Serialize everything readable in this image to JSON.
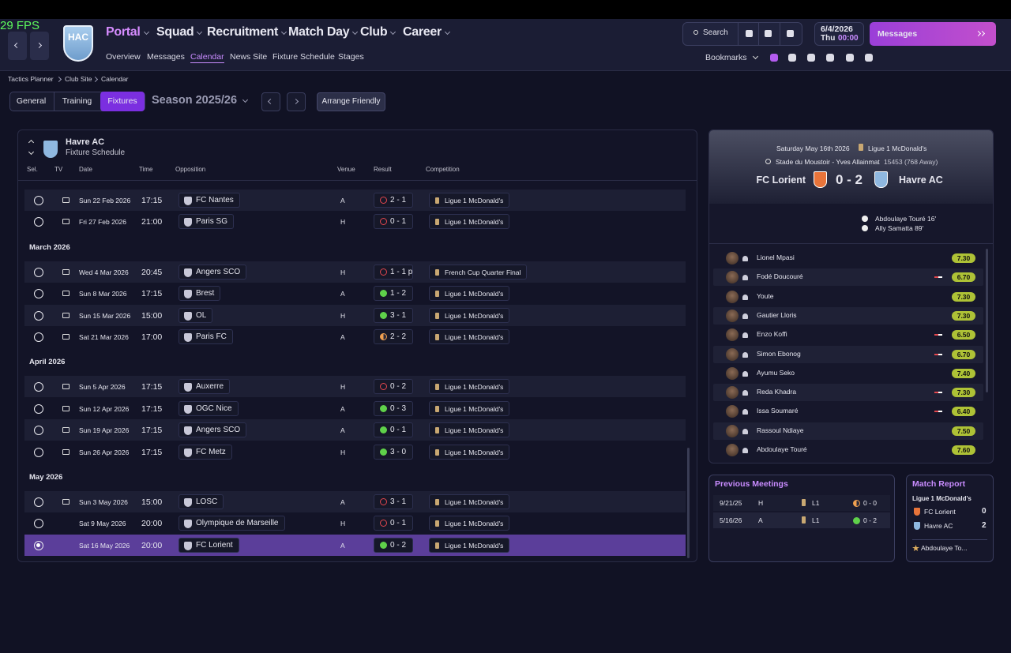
{
  "fps": "29 FPS",
  "nav": {
    "badge": "HAC",
    "menus": [
      "Portal",
      "Squad",
      "Recruitment",
      "Match Day",
      "Club",
      "Career"
    ],
    "submenu": [
      "Overview",
      "Messages",
      "Calendar",
      "News Site",
      "Fixture Schedule",
      "Stages"
    ],
    "search": "Search",
    "date": "6/4/2026",
    "day": "Thu",
    "time": "00:00",
    "messages": "Messages",
    "bookmarks": "Bookmarks"
  },
  "breadcrumb": [
    "Tactics Planner",
    "Club Site",
    "Calendar"
  ],
  "tabs": [
    "General",
    "Training",
    "Fixtures"
  ],
  "season": "Season 2025/26",
  "arrange": "Arrange Friendly",
  "schedule": {
    "team": "Havre AC",
    "subtitle": "Fixture Schedule",
    "columns": [
      "Sel.",
      "TV",
      "Date",
      "Time",
      "Opposition",
      "Venue",
      "Result",
      "Competition"
    ],
    "groups": [
      {
        "rows": [
          {
            "date": "Sun 22 Feb 2026",
            "time": "17:15",
            "opponent": "FC Nantes",
            "venue": "A",
            "result": "2 - 1",
            "outcome": "loss",
            "competition": "Ligue 1 McDonald's",
            "tv": true
          },
          {
            "date": "Fri 27 Feb 2026",
            "time": "21:00",
            "opponent": "Paris SG",
            "venue": "H",
            "result": "0 - 1",
            "outcome": "loss",
            "competition": "Ligue 1 McDonald's",
            "tv": true
          }
        ]
      },
      {
        "month": "March 2026",
        "rows": [
          {
            "date": "Wed 4 Mar 2026",
            "time": "20:45",
            "opponent": "Angers SCO",
            "venue": "H",
            "result": "1 - 1 p",
            "outcome": "loss",
            "competition": "French Cup Quarter Final",
            "tv": true
          },
          {
            "date": "Sun 8 Mar 2026",
            "time": "17:15",
            "opponent": "Brest",
            "venue": "A",
            "result": "1 - 2",
            "outcome": "win",
            "competition": "Ligue 1 McDonald's",
            "tv": true
          },
          {
            "date": "Sun 15 Mar 2026",
            "time": "15:00",
            "opponent": "OL",
            "venue": "H",
            "result": "3 - 1",
            "outcome": "win",
            "competition": "Ligue 1 McDonald's",
            "tv": true
          },
          {
            "date": "Sat 21 Mar 2026",
            "time": "17:00",
            "opponent": "Paris FC",
            "venue": "A",
            "result": "2 - 2",
            "outcome": "draw",
            "competition": "Ligue 1 McDonald's",
            "tv": true
          }
        ]
      },
      {
        "month": "April 2026",
        "rows": [
          {
            "date": "Sun 5 Apr 2026",
            "time": "17:15",
            "opponent": "Auxerre",
            "venue": "H",
            "result": "0 - 2",
            "outcome": "loss",
            "competition": "Ligue 1 McDonald's",
            "tv": true
          },
          {
            "date": "Sun 12 Apr 2026",
            "time": "17:15",
            "opponent": "OGC Nice",
            "venue": "A",
            "result": "0 - 3",
            "outcome": "win",
            "competition": "Ligue 1 McDonald's",
            "tv": true
          },
          {
            "date": "Sun 19 Apr 2026",
            "time": "17:15",
            "opponent": "Angers SCO",
            "venue": "A",
            "result": "0 - 1",
            "outcome": "win",
            "competition": "Ligue 1 McDonald's",
            "tv": true
          },
          {
            "date": "Sun 26 Apr 2026",
            "time": "17:15",
            "opponent": "FC Metz",
            "venue": "H",
            "result": "3 - 0",
            "outcome": "win",
            "competition": "Ligue 1 McDonald's",
            "tv": true
          }
        ]
      },
      {
        "month": "May 2026",
        "rows": [
          {
            "date": "Sun 3 May 2026",
            "time": "15:00",
            "opponent": "LOSC",
            "venue": "A",
            "result": "3 - 1",
            "outcome": "loss",
            "competition": "Ligue 1 McDonald's",
            "tv": true
          },
          {
            "date": "Sat 9 May 2026",
            "time": "20:00",
            "opponent": "Olympique de Marseille",
            "venue": "H",
            "result": "0 - 1",
            "outcome": "loss",
            "competition": "Ligue 1 McDonald's",
            "tv": false
          },
          {
            "date": "Sat 16 May 2026",
            "time": "20:00",
            "opponent": "FC Lorient",
            "venue": "A",
            "result": "0 - 2",
            "outcome": "win",
            "competition": "Ligue 1 McDonald's",
            "tv": false,
            "selected": true
          }
        ]
      }
    ]
  },
  "match": {
    "date": "Saturday May 16th 2026",
    "competition": "Ligue 1 McDonald's",
    "stadium": "Stade du Moustoir - Yves Allainmat",
    "attendance": "15453",
    "away_fans": "(768 Away)",
    "home": "FC Lorient",
    "score": "0 - 2",
    "away": "Havre AC",
    "scorers": [
      "Abdoulaye Touré 16'",
      "Ally Samatta 89'"
    ],
    "players": [
      {
        "name": "Lionel Mpasi",
        "rating": "7.30",
        "sub": false
      },
      {
        "name": "Fodé Doucouré",
        "rating": "6.70",
        "sub": true
      },
      {
        "name": "Youte",
        "rating": "7.30",
        "sub": false
      },
      {
        "name": "Gautier Lloris",
        "rating": "7.30",
        "sub": false
      },
      {
        "name": "Enzo Koffi",
        "rating": "6.50",
        "sub": true
      },
      {
        "name": "Simon Ebonog",
        "rating": "6.70",
        "sub": true
      },
      {
        "name": "Ayumu Seko",
        "rating": "7.40",
        "sub": false
      },
      {
        "name": "Reda Khadra",
        "rating": "7.30",
        "sub": true
      },
      {
        "name": "Issa Soumaré",
        "rating": "6.40",
        "sub": true
      },
      {
        "name": "Rassoul Ndiaye",
        "rating": "7.50",
        "sub": false
      },
      {
        "name": "Abdoulaye Touré",
        "rating": "7.60",
        "sub": false
      }
    ]
  },
  "previous_meetings": {
    "title": "Previous Meetings",
    "rows": [
      {
        "date": "9/21/25",
        "venue": "H",
        "competition": "L1",
        "result": "0 - 0",
        "outcome": "draw"
      },
      {
        "date": "5/16/26",
        "venue": "A",
        "competition": "L1",
        "result": "0 - 2",
        "outcome": "win"
      }
    ]
  },
  "match_report": {
    "title": "Match Report",
    "competition": "Ligue 1 McDonald's",
    "teams": [
      {
        "name": "FC Lorient",
        "score": "0"
      },
      {
        "name": "Havre AC",
        "score": "2"
      }
    ],
    "player": "Abdoulaye To..."
  }
}
